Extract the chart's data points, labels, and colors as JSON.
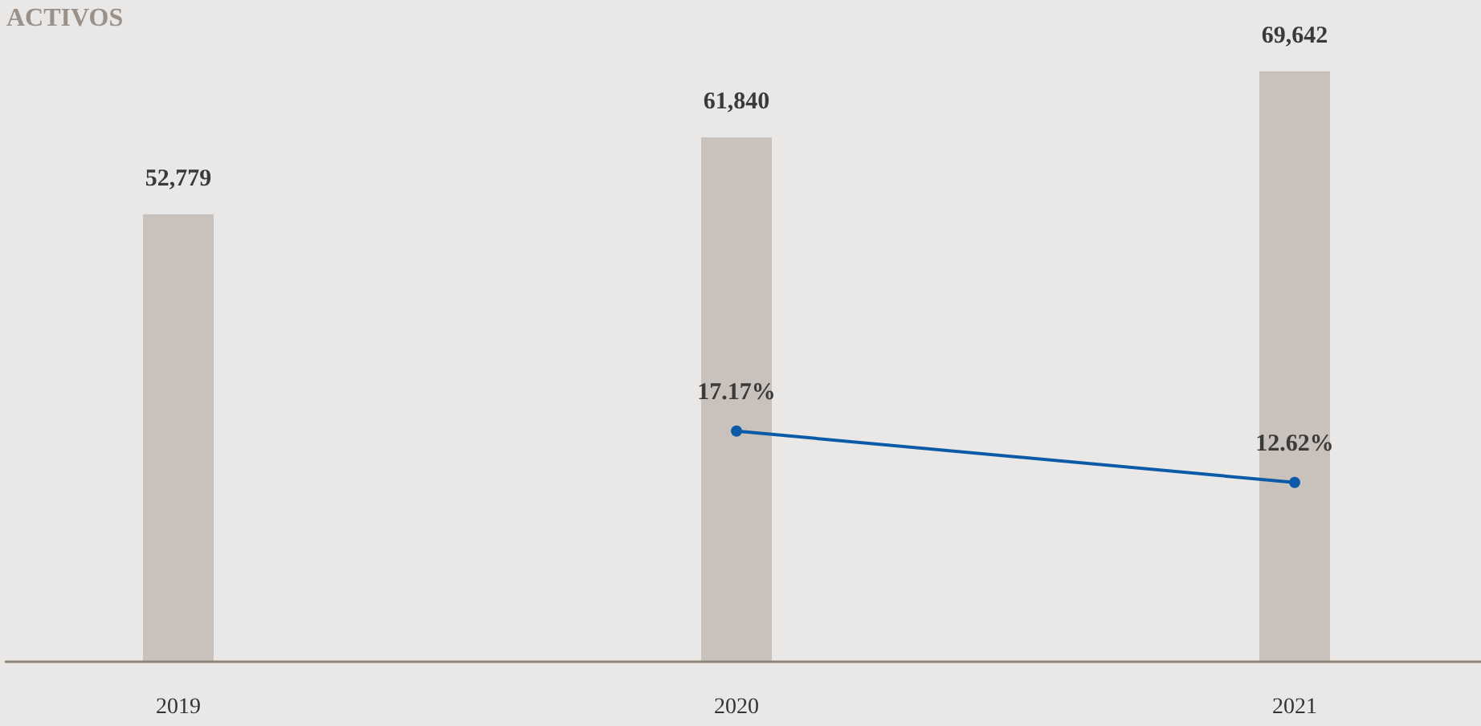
{
  "chart_data": {
    "type": "bar",
    "title": "ACTIVOS",
    "categories": [
      "2019",
      "2020",
      "2021"
    ],
    "series": [
      {
        "color": "#c9c2bc",
        "values": [
          52779,
          61840,
          69642
        ],
        "value_labels": [
          "52,779",
          "61,840",
          "69,642"
        ]
      },
      {
        "type": "line",
        "axis": "y2",
        "color": "#0b5aa8",
        "values": [
          null,
          17.17,
          12.62
        ],
        "value_labels": [
          null,
          "17.17%",
          "12.62%"
        ]
      }
    ],
    "tick_labels": "x",
    "marker": "circle",
    "line_style": "solid"
  }
}
